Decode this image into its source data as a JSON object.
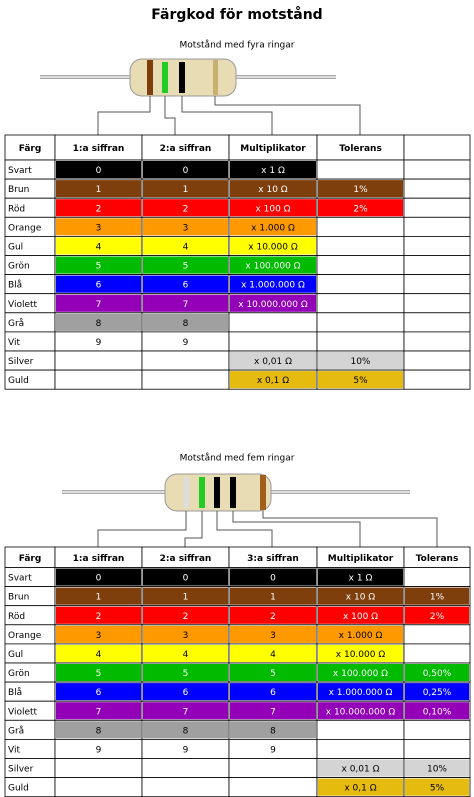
{
  "title": "Färgkod för motstånd",
  "tables": [
    {
      "caption": "Motstånd med fyra ringar",
      "headers": [
        "Färg",
        "1:a siffran",
        "2:a siffran",
        "Multiplikator",
        "Tolerans"
      ],
      "rows": [
        {
          "fill": "#000000",
          "cells": [
            "Svart",
            0,
            0,
            "x 1 Ω",
            null
          ]
        },
        {
          "fill": "#7f3f0c",
          "cells": [
            "Brun",
            1,
            1,
            "x 10 Ω",
            "1%"
          ]
        },
        {
          "fill": "#ff0000",
          "cells": [
            "Röd",
            2,
            2,
            "x 100 Ω",
            "2%"
          ]
        },
        {
          "fill": "#ff9900",
          "cells": [
            "Orange",
            3,
            3,
            "x 1.000 Ω",
            null
          ]
        },
        {
          "fill": "#ffff00",
          "cells": [
            "Gul",
            4,
            4,
            "x 10.000 Ω",
            null
          ]
        },
        {
          "fill": "#00bb00",
          "cells": [
            "Grön",
            5,
            5,
            "x 100.000 Ω",
            null
          ]
        },
        {
          "fill": "#0000ff",
          "cells": [
            "Blå",
            6,
            6,
            "x 1.000.000 Ω",
            null
          ]
        },
        {
          "fill": "#9400b8",
          "cells": [
            "Violett",
            7,
            7,
            "x 10.000.000 Ω",
            null
          ]
        },
        {
          "fill": "#a0a0a0",
          "cells": [
            "Grå",
            8,
            8,
            null,
            null
          ]
        },
        {
          "fill": "#ffffff",
          "cells": [
            "Vit",
            9,
            9,
            null,
            null
          ]
        },
        {
          "fill": "#d4d4d4",
          "cells": [
            "Silver",
            null,
            null,
            "x 0,01 Ω",
            "10%"
          ]
        },
        {
          "fill": "#e6bb10",
          "cells": [
            "Guld",
            null,
            null,
            "x 0,1 Ω",
            "5%"
          ]
        }
      ]
    },
    {
      "caption": "Motstånd med fem ringar",
      "headers": [
        "Färg",
        "1:a siffran",
        "2:a siffran",
        "3:a siffran",
        "Multiplikator",
        "Tolerans"
      ],
      "rows": [
        {
          "fill": "#000000",
          "cells": [
            "Svart",
            0,
            0,
            0,
            "x 1 Ω",
            null
          ]
        },
        {
          "fill": "#7f3f0c",
          "cells": [
            "Brun",
            1,
            1,
            1,
            "x 10 Ω",
            "1%"
          ]
        },
        {
          "fill": "#ff0000",
          "cells": [
            "Röd",
            2,
            2,
            2,
            "x 100 Ω",
            "2%"
          ]
        },
        {
          "fill": "#ff9900",
          "cells": [
            "Orange",
            3,
            3,
            3,
            "x 1.000 Ω",
            null
          ]
        },
        {
          "fill": "#ffff00",
          "cells": [
            "Gul",
            4,
            4,
            4,
            "x 10.000 Ω",
            null
          ]
        },
        {
          "fill": "#00bb00",
          "cells": [
            "Grön",
            5,
            5,
            5,
            "x 100.000 Ω",
            "0,50%"
          ]
        },
        {
          "fill": "#0000ff",
          "cells": [
            "Blå",
            6,
            6,
            6,
            "x 1.000.000 Ω",
            "0,25%"
          ]
        },
        {
          "fill": "#9400b8",
          "cells": [
            "Violett",
            7,
            7,
            7,
            "x 10.000.000 Ω",
            "0,10%"
          ]
        },
        {
          "fill": "#a0a0a0",
          "cells": [
            "Grå",
            8,
            8,
            8,
            null,
            null
          ]
        },
        {
          "fill": "#ffffff",
          "cells": [
            "Vit",
            9,
            9,
            9,
            null,
            null
          ]
        },
        {
          "fill": "#d4d4d4",
          "cells": [
            "Silver",
            null,
            null,
            null,
            "x 0,01 Ω",
            "10%"
          ]
        },
        {
          "fill": "#e6bb10",
          "cells": [
            "Guld",
            null,
            null,
            null,
            "x 0,1 Ω",
            "5%"
          ]
        }
      ]
    }
  ]
}
